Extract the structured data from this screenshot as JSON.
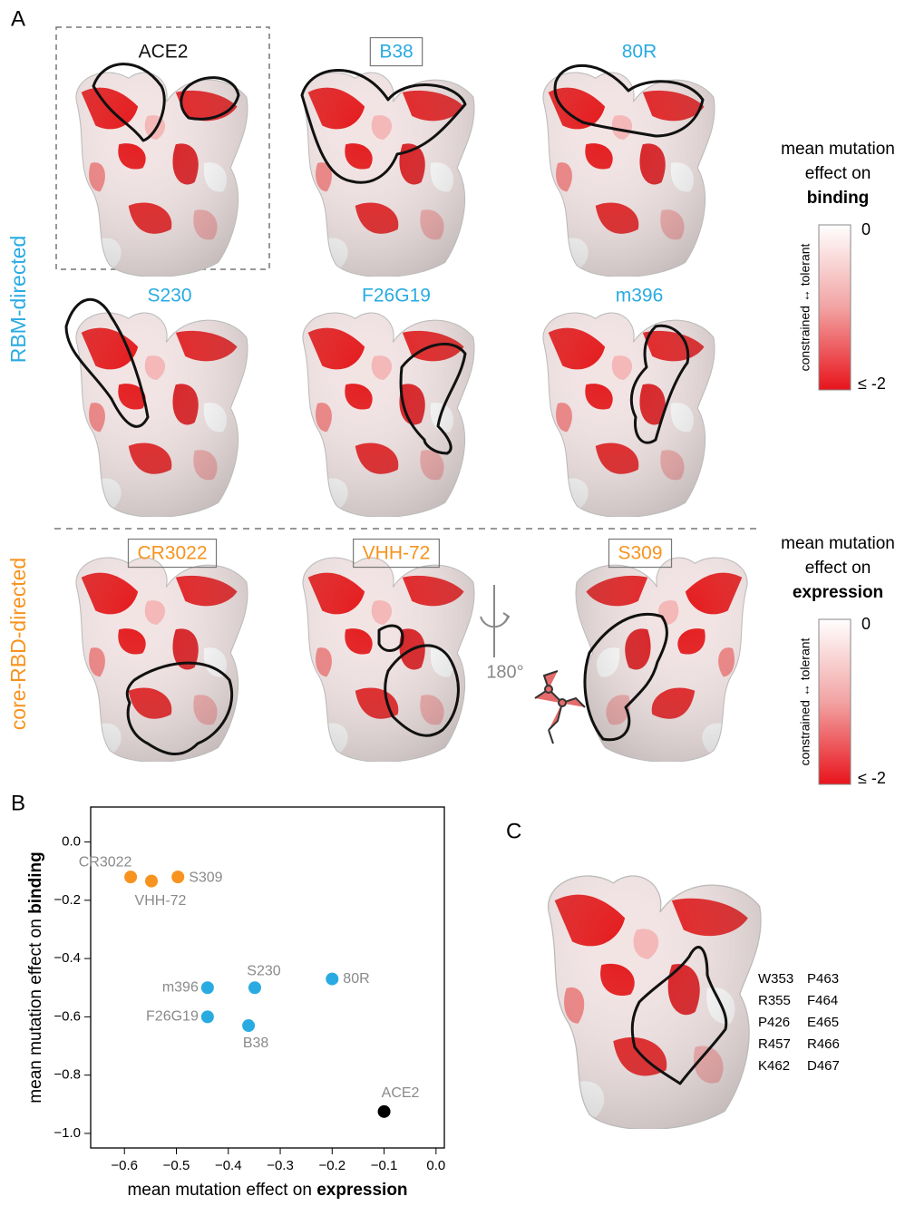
{
  "panel_letters": [
    "A",
    "B",
    "C"
  ],
  "panel_a": {
    "row_labels": [
      {
        "text": "RBM-directed",
        "color": "#29abe2"
      },
      {
        "text": "core-RBD-directed",
        "color": "#f7931e"
      }
    ],
    "antibodies": [
      {
        "name": "ACE2",
        "color": "#111111",
        "boxed": false
      },
      {
        "name": "B38",
        "color": "#29abe2",
        "boxed": true
      },
      {
        "name": "80R",
        "color": "#29abe2",
        "boxed": false
      },
      {
        "name": "S230",
        "color": "#29abe2",
        "boxed": false
      },
      {
        "name": "F26G19",
        "color": "#29abe2",
        "boxed": false
      },
      {
        "name": "m396",
        "color": "#29abe2",
        "boxed": false
      },
      {
        "name": "CR3022",
        "color": "#f7931e",
        "boxed": true
      },
      {
        "name": "VHH-72",
        "color": "#f7931e",
        "boxed": true
      },
      {
        "name": "S309",
        "color": "#f7931e",
        "boxed": true
      }
    ],
    "rotation": "180°",
    "colorbars": [
      {
        "title": [
          "mean mutation",
          "effect on",
          "binding"
        ],
        "axis_label": "constrained ↔ tolerant",
        "top": "0",
        "bottom": "≤ -2"
      },
      {
        "title": [
          "mean mutation",
          "effect on",
          "expression"
        ],
        "axis_label": "constrained ↔ tolerant",
        "top": "0",
        "bottom": "≤ -2"
      }
    ]
  },
  "chart_data": {
    "type": "scatter",
    "xlabel": [
      "mean mutation effect on",
      "expression"
    ],
    "ylabel": [
      "mean mutation effect on",
      "binding"
    ],
    "point_labels": [
      "CR3022",
      "VHH-72",
      "S309",
      "m396",
      "F26G19",
      "S230",
      "B38",
      "80R",
      "ACE2"
    ],
    "colors": [
      "#f7931e",
      "#f7931e",
      "#f7931e",
      "#29abe2",
      "#29abe2",
      "#29abe2",
      "#29abe2",
      "#29abe2",
      "#000000"
    ],
    "x": [
      -0.588,
      -0.548,
      -0.497,
      -0.44,
      -0.44,
      -0.349,
      -0.361,
      -0.2,
      -0.1
    ],
    "values": [
      -0.12,
      -0.134,
      -0.12,
      -0.5,
      -0.6,
      -0.5,
      -0.63,
      -0.47,
      -0.925
    ],
    "xlim": [
      -0.665,
      0.016
    ],
    "ylim": [
      -1.05,
      0.12
    ],
    "xticks": [
      {
        "value": -0.6,
        "label": "−0.6"
      },
      {
        "value": -0.5,
        "label": "−0.5"
      },
      {
        "value": -0.4,
        "label": "−0.4"
      },
      {
        "value": -0.3,
        "label": "−0.3"
      },
      {
        "value": -0.2,
        "label": "−0.2"
      },
      {
        "value": -0.1,
        "label": "−0.1"
      },
      {
        "value": 0,
        "label": "0.0"
      }
    ],
    "yticks": [
      {
        "value": 0,
        "label": "0.0"
      },
      {
        "value": -0.2,
        "label": "−0.2"
      },
      {
        "value": -0.4,
        "label": "−0.4"
      },
      {
        "value": -0.6,
        "label": "−0.6"
      },
      {
        "value": -0.8,
        "label": "−0.8"
      },
      {
        "value": -1.0,
        "label": "−1.0"
      }
    ]
  },
  "panel_c": {
    "residues": [
      [
        "W353",
        "P463"
      ],
      [
        "R355",
        "F464"
      ],
      [
        "P426",
        "E465"
      ],
      [
        "R457",
        "R466"
      ],
      [
        "K462",
        "D467"
      ]
    ]
  }
}
